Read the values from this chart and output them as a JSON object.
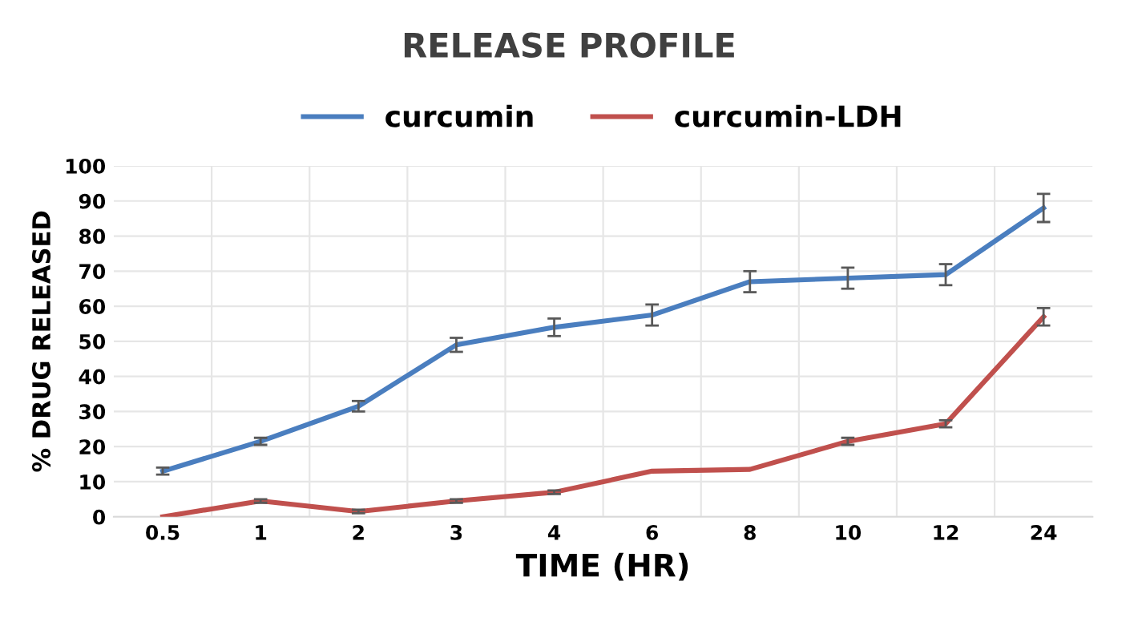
{
  "chart_data": {
    "type": "line",
    "title": "RELEASE PROFILE",
    "xlabel": "TIME (HR)",
    "ylabel": "% DRUG RELEASED",
    "categories": [
      "0.5",
      "1",
      "2",
      "3",
      "4",
      "6",
      "8",
      "10",
      "12",
      "24"
    ],
    "series": [
      {
        "name": "curcumin",
        "color": "#4a7ebf",
        "values": [
          13,
          21.5,
          31.5,
          49,
          54,
          57.5,
          67,
          68,
          69,
          88
        ],
        "errors": [
          1,
          1,
          1.5,
          2,
          2.5,
          3,
          3,
          3,
          3,
          4
        ]
      },
      {
        "name": "curcumin-LDH",
        "color": "#c0504d",
        "values": [
          0,
          4.5,
          1.5,
          4.5,
          7,
          13,
          13.5,
          21.5,
          26.5,
          57
        ],
        "errors": [
          null,
          0.5,
          0.5,
          0.5,
          0.5,
          null,
          null,
          1,
          1,
          2.5
        ]
      }
    ],
    "ylim": [
      0,
      100
    ],
    "yticks": [
      0,
      10,
      20,
      30,
      40,
      50,
      60,
      70,
      80,
      90,
      100
    ],
    "grid": true,
    "legend": "top",
    "marker": "none",
    "line_style": "solid"
  }
}
